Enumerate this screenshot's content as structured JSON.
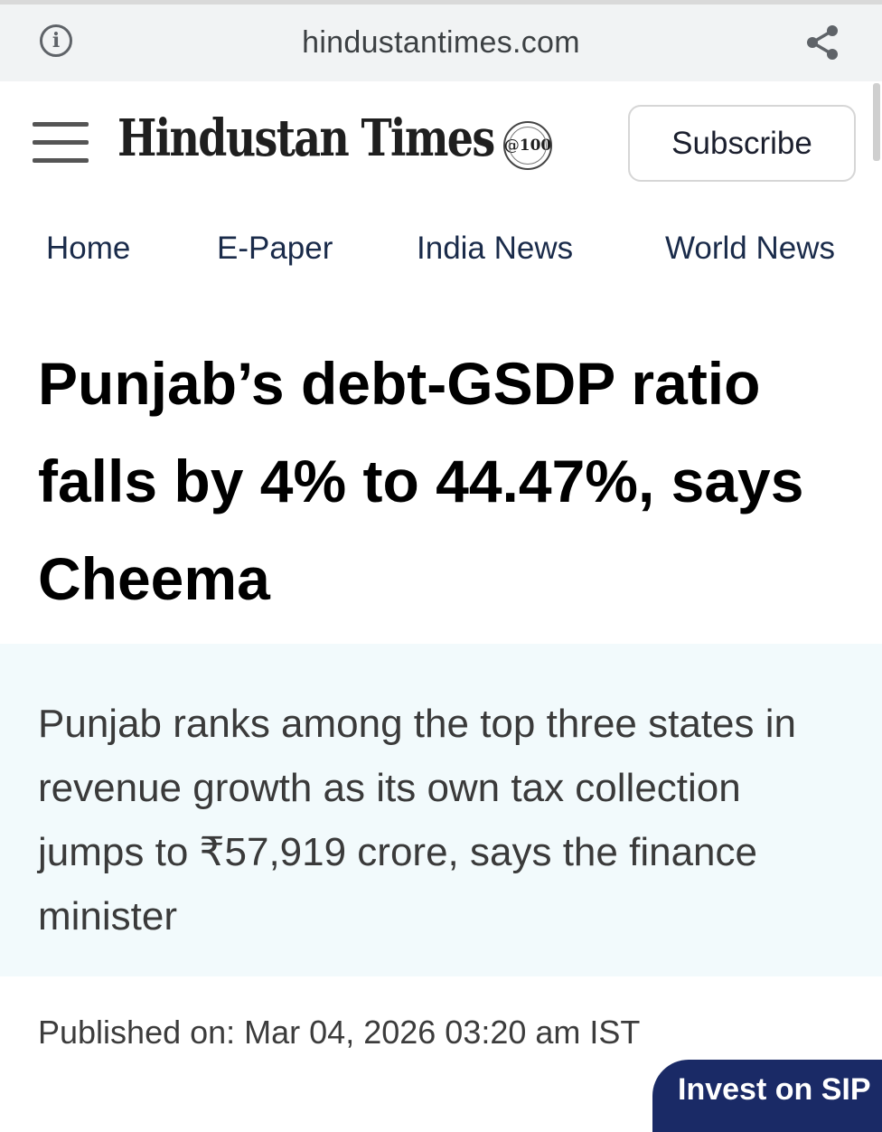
{
  "browser": {
    "url": "hindustantimes.com",
    "info_icon": "info-icon",
    "share_icon": "share-icon"
  },
  "header": {
    "menu_icon": "hamburger-menu-icon",
    "logo_text": "Hindustan Times",
    "logo_seal": "@100",
    "subscribe_label": "Subscribe"
  },
  "nav": {
    "items": [
      "Home",
      "E-Paper",
      "India News",
      "World News"
    ]
  },
  "article": {
    "headline": "Punjab’s debt-GSDP ratio falls by 4% to 44.47%, says Cheema",
    "summary": "Punjab ranks among the top three states in revenue growth as its own tax collection jumps to ₹57,919 crore, says the finance minister",
    "published": "Published on: Mar 04, 2026 03:20 am IST"
  },
  "floating_button": {
    "label": "Invest on SIP"
  },
  "colors": {
    "nav_text": "#1a2b4a",
    "summary_bg": "#f2fafc",
    "urlbar_bg": "#f1f3f4",
    "floating_bg": "#1a2a66"
  }
}
